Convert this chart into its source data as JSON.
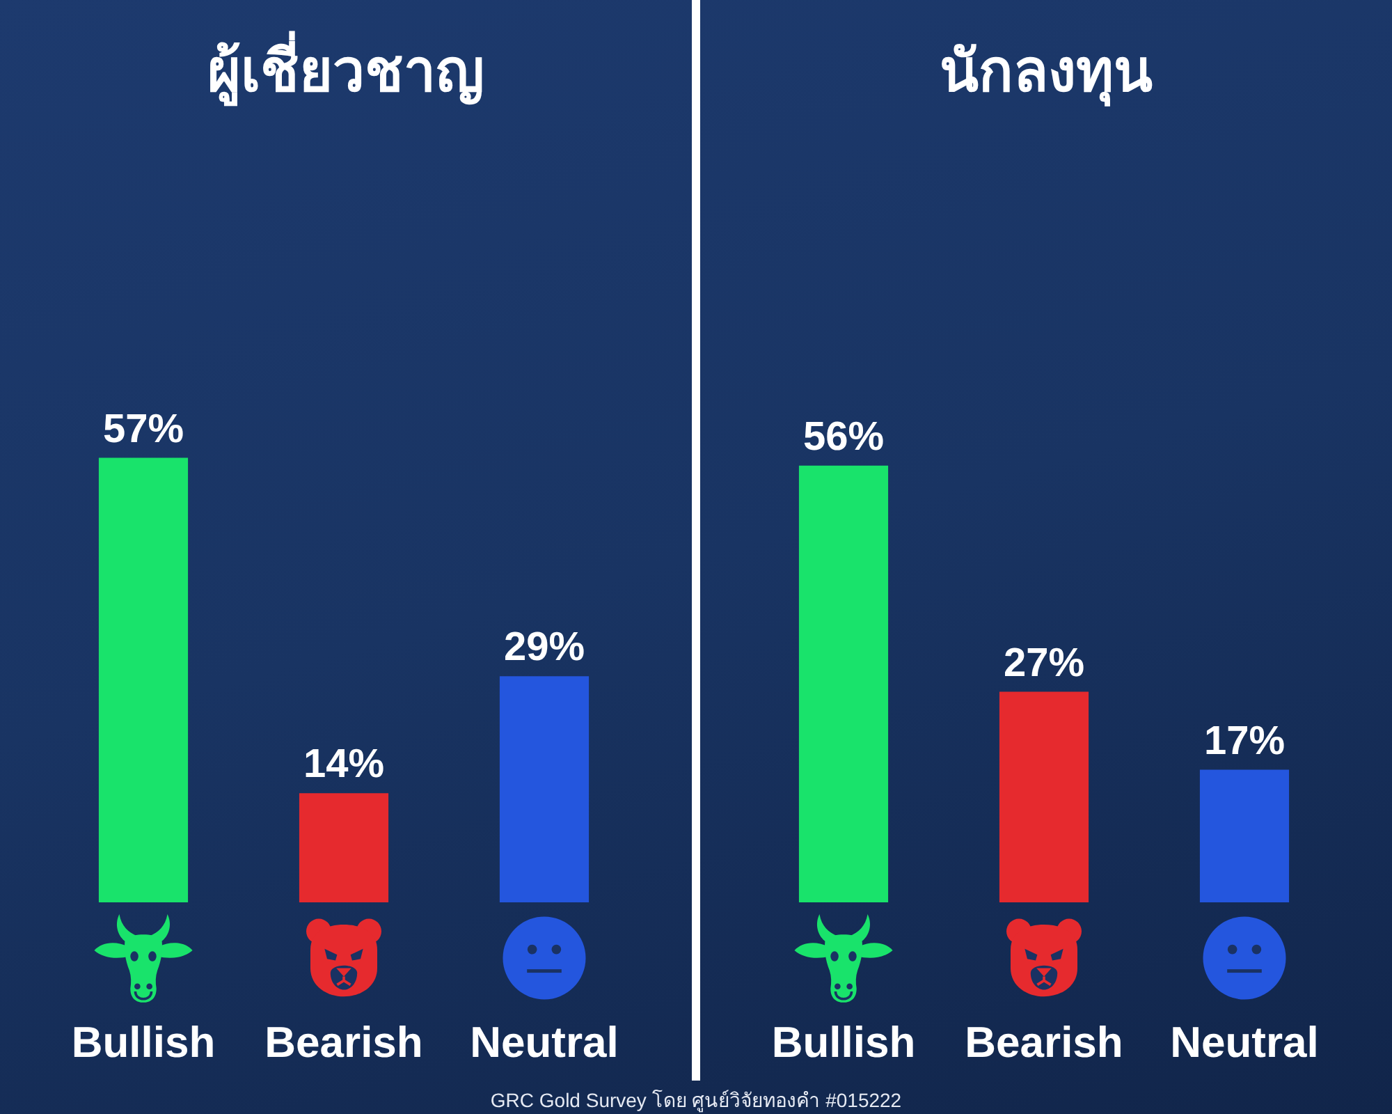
{
  "chart_data": [
    {
      "type": "bar",
      "title": "ผู้เชี่ยวชาญ",
      "categories": [
        "Bullish",
        "Bearish",
        "Neutral"
      ],
      "values": [
        57,
        14,
        29
      ],
      "colors": [
        "#19e36b",
        "#e62a2e",
        "#2456de"
      ],
      "value_labels": [
        "57%",
        "14%",
        "29%"
      ],
      "tick_labels": "x",
      "annotations": [
        "GRC Gold Survey โดย ศูนย์วิจัยทองคำ #015222"
      ]
    },
    {
      "type": "bar",
      "title": "นักลงทุน",
      "categories": [
        "Bullish",
        "Bearish",
        "Neutral"
      ],
      "values": [
        56,
        27,
        17
      ],
      "colors": [
        "#19e36b",
        "#e62a2e",
        "#2456de"
      ],
      "value_labels": [
        "56%",
        "27%",
        "17%"
      ],
      "tick_labels": "x"
    }
  ]
}
